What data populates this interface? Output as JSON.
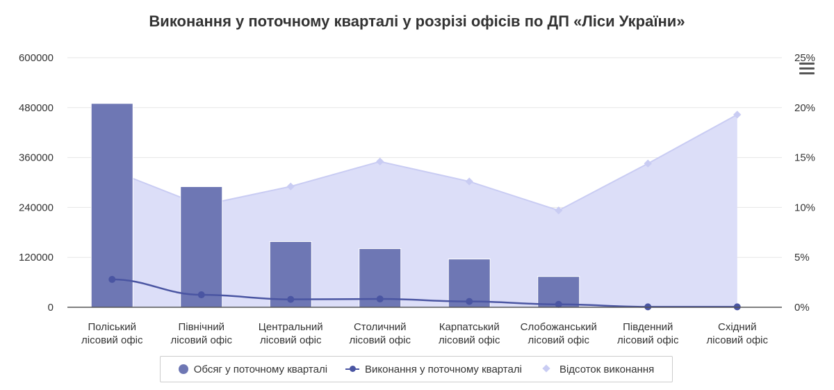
{
  "title": "Виконання у поточному кварталі у розрізі офісів по ДП «Ліси України»",
  "menu_icon": "hamburger-menu-icon",
  "colors": {
    "bar": "#6e77b4",
    "line": "#4a55a2",
    "area_fill": "#dcdef8",
    "area_line": "#c9ccf3",
    "grid": "#e6e6e6",
    "axis": "#555555",
    "text": "#333333"
  },
  "legend": {
    "volume": "Обсяг у поточному кварталі",
    "execution": "Виконання у поточному кварталі",
    "percent": "Відсоток виконання"
  },
  "chart_data": {
    "type": "bar",
    "title": "Виконання у поточному кварталі у розрізі офісів по ДП «Ліси України»",
    "categories": [
      [
        "Поліський",
        "лісовий офіс"
      ],
      [
        "Північний",
        "лісовий офіс"
      ],
      [
        "Центральний",
        "лісовий офіс"
      ],
      [
        "Столичний",
        "лісовий офіс"
      ],
      [
        "Карпатський",
        "лісовий офіс"
      ],
      [
        "Слобожанський",
        "лісовий офіс"
      ],
      [
        "Південний",
        "лісовий офіс"
      ],
      [
        "Східний",
        "лісовий офіс"
      ]
    ],
    "left_axis": {
      "min": 0,
      "max": 600000,
      "ticks": [
        0,
        120000,
        240000,
        360000,
        480000,
        600000
      ],
      "tick_labels": [
        "0",
        "120000",
        "240000",
        "360000",
        "480000",
        "600000"
      ]
    },
    "right_axis": {
      "min": 0,
      "max": 25,
      "ticks": [
        0,
        5,
        10,
        15,
        20,
        25
      ],
      "tick_labels": [
        "0%",
        "5%",
        "10%",
        "15%",
        "20%",
        "25%"
      ]
    },
    "grid": true,
    "legend_position": "bottom-center",
    "series": [
      {
        "name": "Обсяг у поточному кварталі",
        "type": "bar",
        "axis": "left",
        "values": [
          490000,
          290000,
          158000,
          141000,
          116000,
          74000,
          0,
          0
        ]
      },
      {
        "name": "Виконання у поточному кварталі",
        "type": "line",
        "axis": "left",
        "values": [
          67000,
          30000,
          19000,
          20000,
          14000,
          7000,
          1000,
          1000
        ]
      },
      {
        "name": "Відсоток виконання",
        "type": "area",
        "axis": "right",
        "values": [
          12.9,
          10.2,
          12.1,
          14.6,
          12.6,
          9.7,
          14.4,
          19.3
        ]
      }
    ]
  }
}
